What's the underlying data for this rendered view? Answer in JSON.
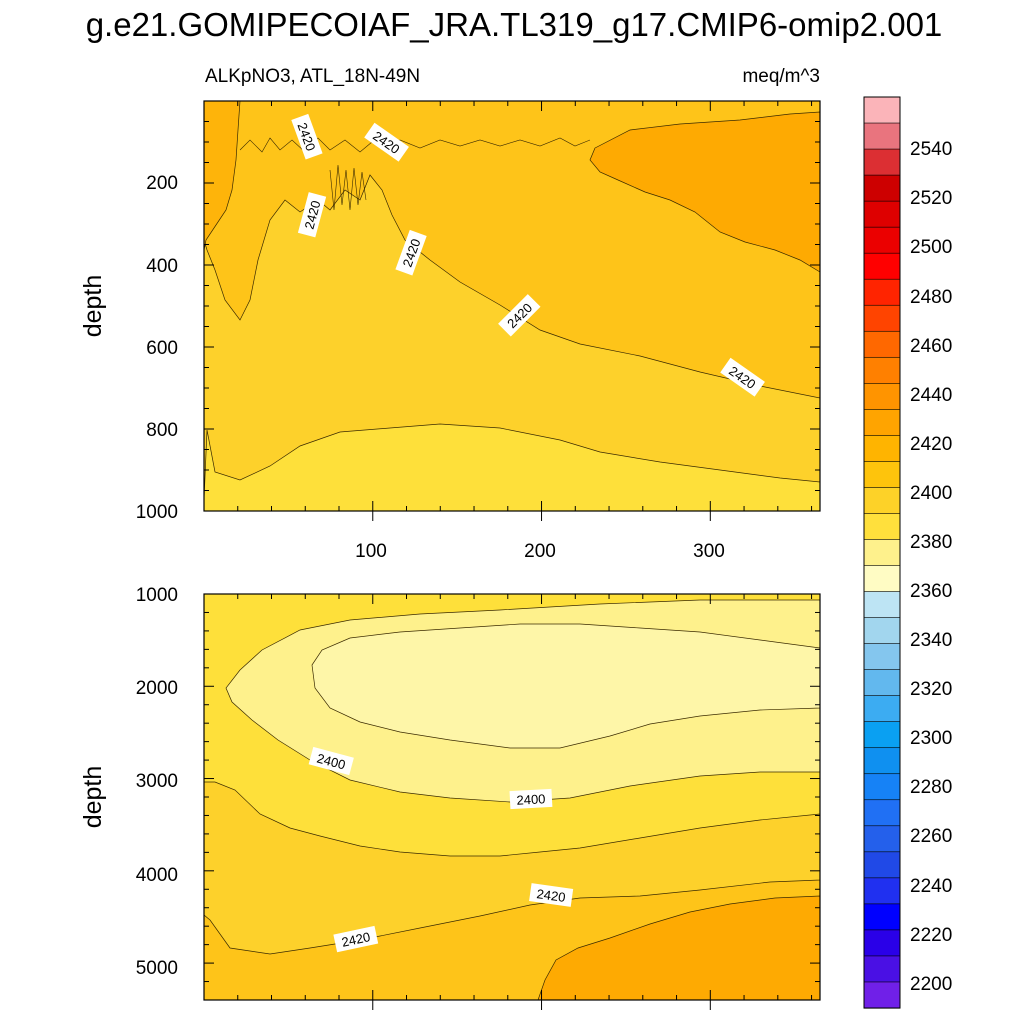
{
  "chart_data": {
    "type": "heatmap",
    "title": "g.e21.GOMIPECOIAF_JRA.TL319_g17.CMIP6-omip2.001",
    "subtitle_left": "ALKpNO3, ATL_18N-49N",
    "subtitle_right": "meq/m^3",
    "panels": [
      {
        "name": "upper",
        "ylabel": "depth",
        "xlabel": "",
        "xlim": [
          0,
          365
        ],
        "ylim": [
          0,
          1000
        ],
        "y_ticks": [
          "200",
          "400",
          "600",
          "800",
          "1000"
        ],
        "x_ticks": [
          "100",
          "200",
          "300"
        ],
        "contour_labels": [
          "2420",
          "2420",
          "2420",
          "2420",
          "2420",
          "2420"
        ],
        "fields_meq_m3": [
          {
            "region": "upper-left wedge",
            "value": 2430
          },
          {
            "region": "upper-right shallow",
            "value": 2430
          },
          {
            "region": "mid depth",
            "value": 2420
          },
          {
            "region": "deep layer",
            "value": 2410
          },
          {
            "region": "bottom",
            "value": 2400
          }
        ]
      },
      {
        "name": "lower",
        "ylabel": "depth",
        "xlabel": "",
        "xlim": [
          0,
          365
        ],
        "ylim": [
          1000,
          5400
        ],
        "y_ticks": [
          "1000",
          "2000",
          "3000",
          "4000",
          "5000"
        ],
        "x_ticks": [],
        "contour_labels": [
          "2400",
          "2400",
          "2420",
          "2420"
        ],
        "fields_meq_m3": [
          {
            "region": "core",
            "value": 2390
          },
          {
            "region": "around core",
            "value": 2400
          },
          {
            "region": "upper deep",
            "value": 2410
          },
          {
            "region": "lower deep",
            "value": 2420
          },
          {
            "region": "bottom-right",
            "value": 2430
          }
        ]
      }
    ],
    "colorbar": {
      "labels": [
        "2540",
        "2520",
        "2500",
        "2480",
        "2460",
        "2440",
        "2420",
        "2400",
        "2380",
        "2360",
        "2340",
        "2320",
        "2300",
        "2280",
        "2260",
        "2240",
        "2220",
        "2200"
      ],
      "colors": [
        "#FBB4B9",
        "#E9747E",
        "#DC2F33",
        "#CD0000",
        "#DE0000",
        "#EB0000",
        "#FF0000",
        "#FF2400",
        "#FF4400",
        "#FF6800",
        "#FF8000",
        "#FF9400",
        "#FFA400",
        "#FFB400",
        "#FEC40C",
        "#FDD228",
        "#FFE03C",
        "#FEF18C",
        "#FFFCC4",
        "#BDE4F4",
        "#A2D6EE",
        "#84C6EE",
        "#62B8EE",
        "#3CACF2",
        "#0AA0F2",
        "#0F90F0",
        "#1682F6",
        "#2070F4",
        "#2460EB",
        "#2049E7",
        "#2030F0",
        "#0000FF",
        "#2A00E8",
        "#4A10E4",
        "#7020E8"
      ]
    }
  }
}
